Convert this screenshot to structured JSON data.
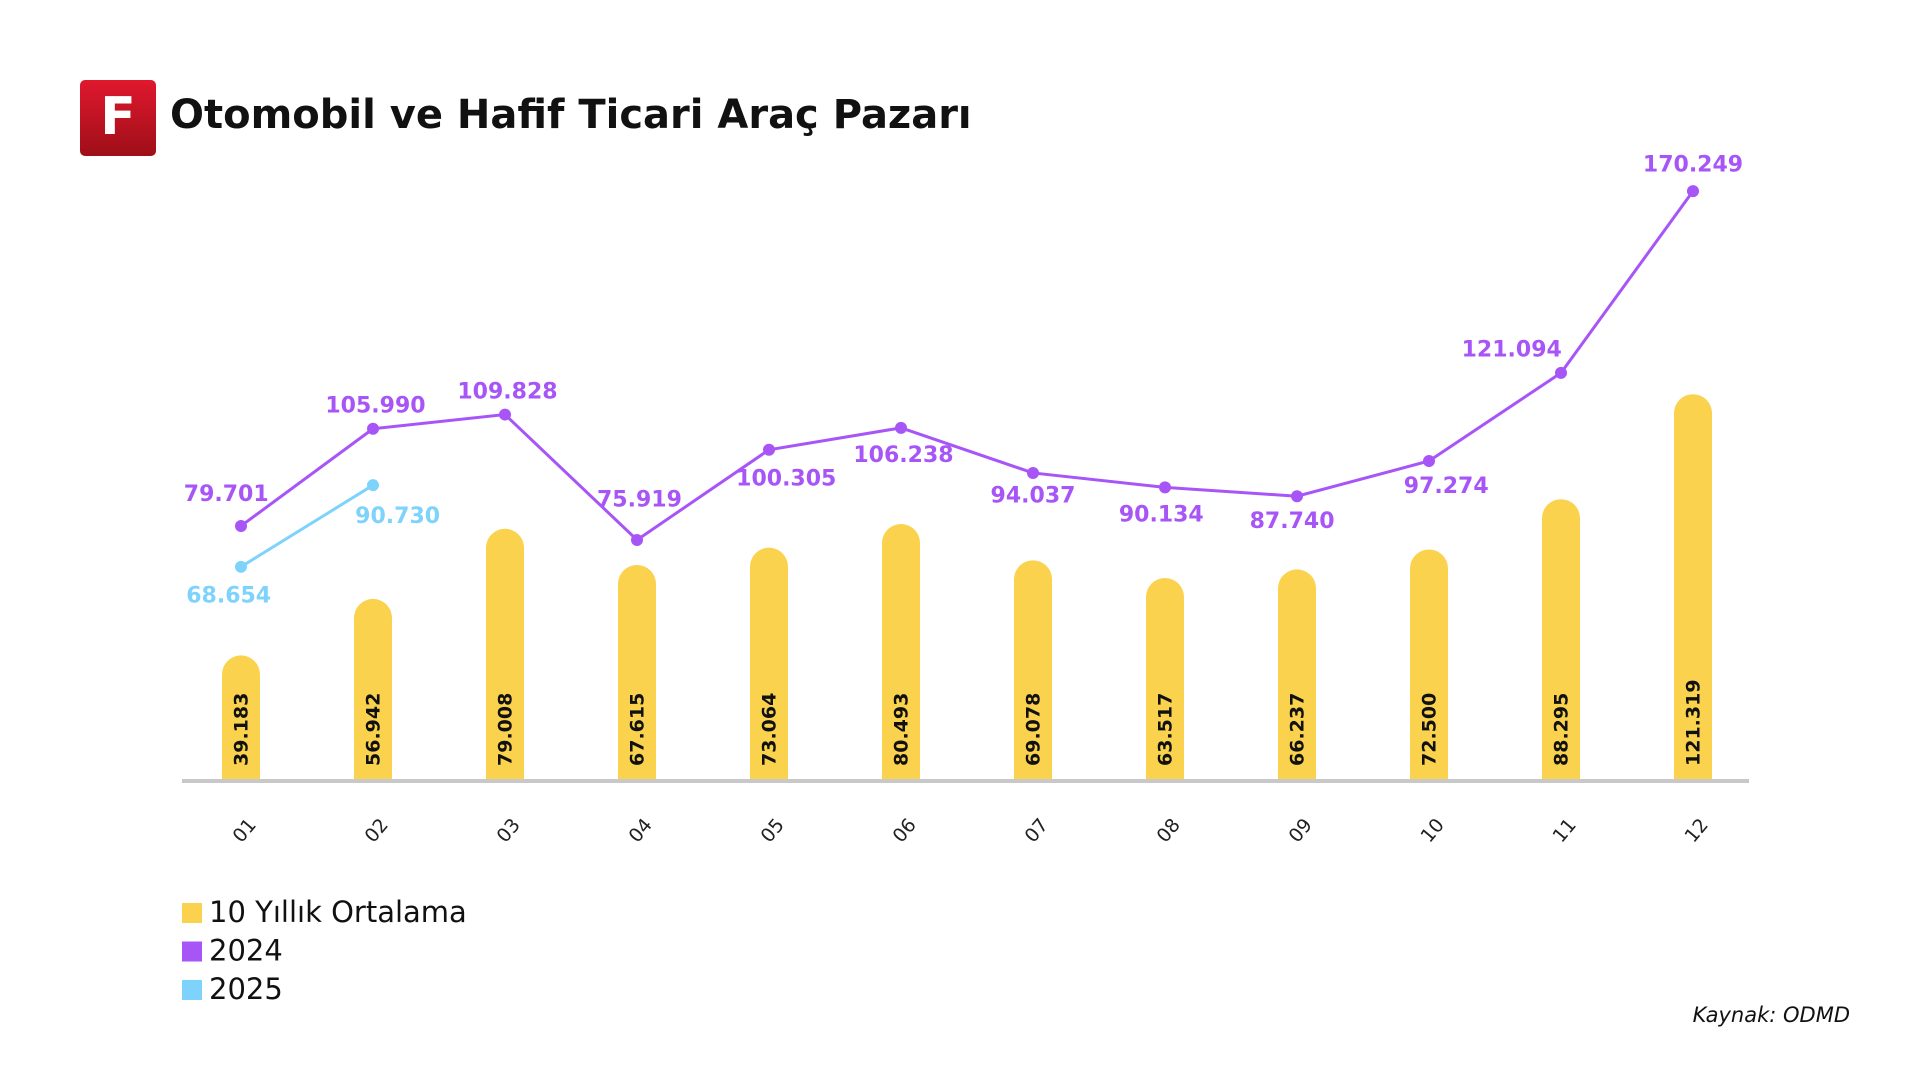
{
  "logo_text": "F",
  "source": "Kaynak: ODMD",
  "chart_data": {
    "type": "bar",
    "title": "Otomobil ve Hafif Ticari Araç Pazarı",
    "categories": [
      "01",
      "02",
      "03",
      "04",
      "05",
      "06",
      "07",
      "08",
      "09",
      "10",
      "11",
      "12"
    ],
    "ylim": [
      0,
      150000
    ],
    "y2lim": [
      11000,
      140000
    ],
    "legend": "bottom-left",
    "series": [
      {
        "name": "10 Yıllık Ortalama",
        "type": "bar",
        "color": "#fbd24e",
        "values": [
          39183,
          56942,
          79008,
          67615,
          73064,
          80493,
          69078,
          63517,
          66237,
          72500,
          88295,
          121319
        ],
        "value_labels": [
          "39.183",
          "56.942",
          "79.008",
          "67.615",
          "73.064",
          "80.493",
          "69.078",
          "63.517",
          "66.237",
          "72.500",
          "88.295",
          "121.319"
        ]
      },
      {
        "name": "2024",
        "type": "line",
        "axis": "y2",
        "color": "#a855f7",
        "values": [
          79701,
          105990,
          109828,
          75919,
          100305,
          106238,
          94037,
          90134,
          87740,
          97274,
          121094,
          170249
        ],
        "value_labels": [
          "79.701",
          "105.990",
          "109.828",
          "75.919",
          "100.305",
          "106.238",
          "94.037",
          "90.134",
          "87.740",
          "97.274",
          "121.094",
          "170.249"
        ]
      },
      {
        "name": "2025",
        "type": "line",
        "axis": "y2",
        "color": "#7dd3fc",
        "values": [
          68654,
          90730,
          null,
          null,
          null,
          null,
          null,
          null,
          null,
          null,
          null,
          null
        ],
        "value_labels": [
          "68.654",
          "90.730",
          null,
          null,
          null,
          null,
          null,
          null,
          null,
          null,
          null,
          null
        ]
      }
    ]
  }
}
